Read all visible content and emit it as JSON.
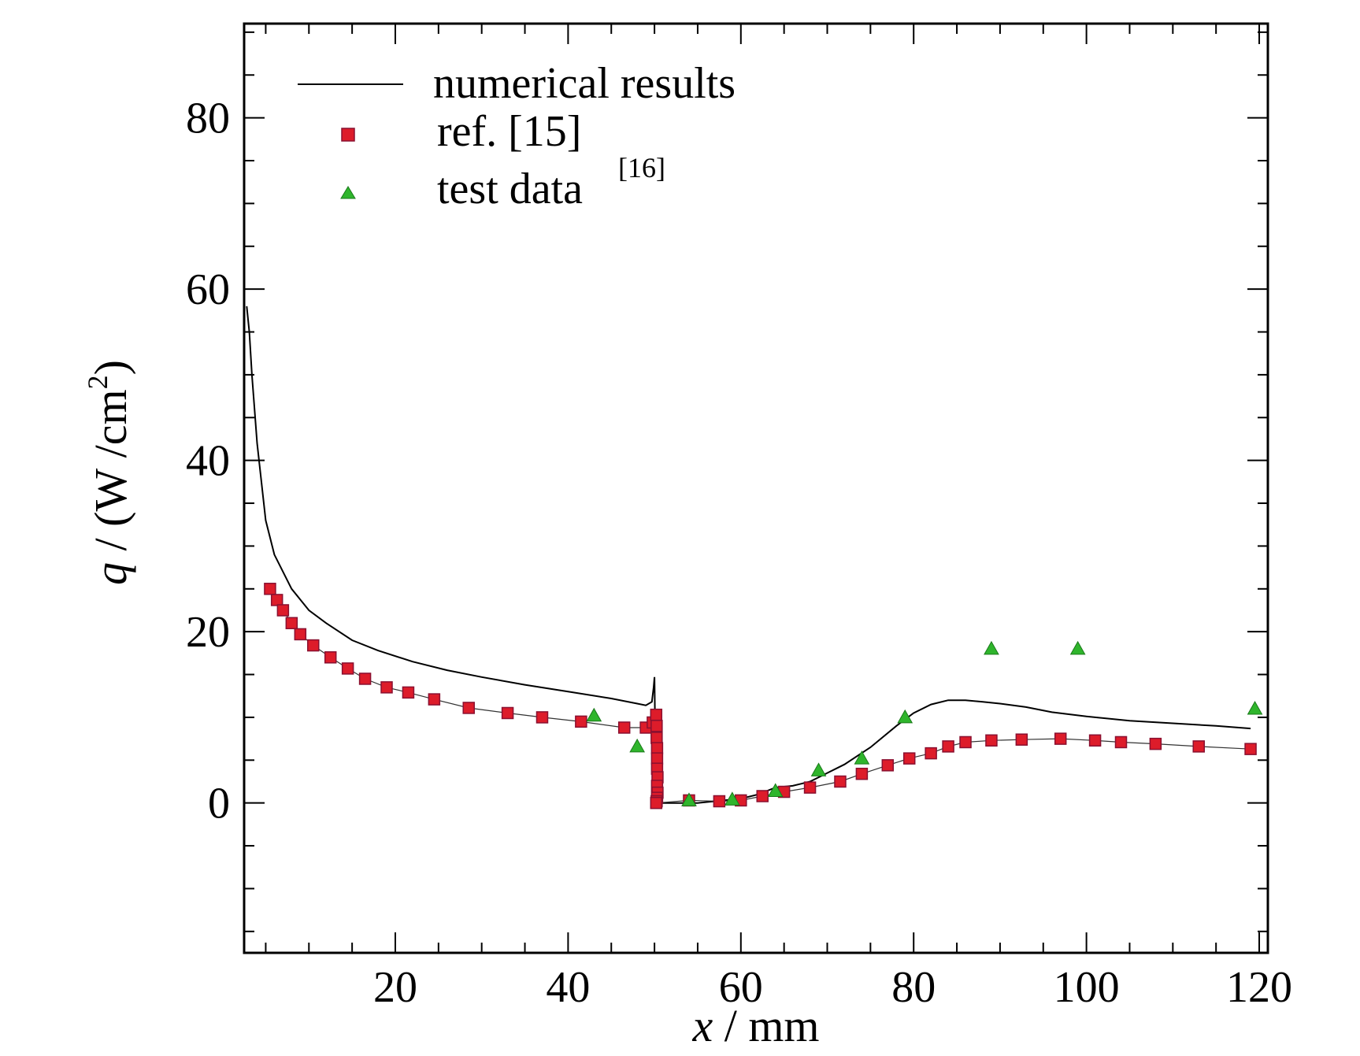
{
  "chart_data": {
    "type": "line",
    "title": "",
    "xlabel": {
      "var": "x",
      "rest": " / mm"
    },
    "ylabel": {
      "var": "q",
      "rest": " / (W /cm",
      "sup": "2",
      "close": ")"
    },
    "xlim": [
      2.5,
      121
    ],
    "ylim": [
      -17.5,
      91
    ],
    "xticks": [
      20,
      40,
      60,
      80,
      100,
      120
    ],
    "xtick_labels": [
      "20",
      "40",
      "60",
      "80",
      "100",
      "120"
    ],
    "yticks": [
      0,
      20,
      40,
      60,
      80
    ],
    "ytick_labels": [
      "0",
      "20",
      "40",
      "60",
      "80"
    ],
    "x_minor_step": 5,
    "y_minor_step": 5,
    "legend": {
      "position": "top-left",
      "entries": [
        {
          "label": "numerical results",
          "sup": ""
        },
        {
          "label": "ref. [15]",
          "sup": ""
        },
        {
          "label": "test data",
          "sup": "[16]"
        }
      ]
    },
    "colors": {
      "line": "#000000",
      "square_fill": "#dd1c2a",
      "square_stroke": "#8a1030",
      "triangle_fill": "#2fb52c",
      "triangle_stroke": "#1a7a1a"
    },
    "series": [
      {
        "name": "numerical results",
        "type": "line",
        "x": [
          2.8,
          3.1,
          3.4,
          4,
          5,
          6,
          8,
          10,
          12,
          15,
          18,
          22,
          26,
          30,
          35,
          40,
          45,
          48,
          49,
          49.7,
          49.9,
          50,
          50.05,
          50.1,
          50.2,
          50.5,
          52,
          55,
          58,
          60,
          62,
          64,
          66,
          68,
          70,
          72,
          75,
          78,
          80,
          82,
          84,
          86,
          88,
          90,
          93,
          96,
          100,
          105,
          110,
          115,
          119
        ],
        "y": [
          58,
          55,
          50,
          42,
          33,
          29,
          25,
          22.5,
          21,
          19,
          17.8,
          16.5,
          15.5,
          14.7,
          13.8,
          13,
          12.2,
          11.6,
          11.4,
          11.8,
          13.5,
          14.7,
          11,
          5,
          0.3,
          0,
          0,
          0,
          0.3,
          0.5,
          1,
          1.8,
          2,
          2.5,
          3.5,
          4.5,
          6.5,
          9,
          10.5,
          11.5,
          12,
          12,
          11.8,
          11.6,
          11.2,
          10.6,
          10.1,
          9.6,
          9.3,
          9,
          8.7
        ]
      },
      {
        "name": "ref. [15]",
        "type": "scatter",
        "marker": "square",
        "x": [
          5.5,
          6.3,
          7.0,
          8.0,
          9.0,
          10.5,
          12.5,
          14.5,
          16.5,
          19,
          21.5,
          24.5,
          28.5,
          33,
          37,
          41.5,
          46.5,
          49,
          49.8,
          50.2,
          50.25,
          50.25,
          50.3,
          50.3,
          50.3,
          50.35,
          50.3,
          50.35,
          50.3,
          50.25,
          50.2,
          54,
          57.5,
          60,
          62.5,
          65,
          68,
          71.5,
          74,
          77,
          79.5,
          82,
          84,
          86,
          89,
          92.5,
          97,
          101,
          104,
          108,
          113,
          119
        ],
        "y": [
          25,
          23.7,
          22.5,
          21,
          19.7,
          18.4,
          17,
          15.7,
          14.5,
          13.5,
          12.9,
          12.1,
          11.1,
          10.5,
          10,
          9.5,
          8.8,
          8.8,
          9.4,
          10.3,
          9,
          7.6,
          6.4,
          5.2,
          4,
          3,
          2,
          1.2,
          0.6,
          0.2,
          0,
          0.3,
          0.2,
          0.3,
          0.8,
          1.3,
          1.8,
          2.5,
          3.4,
          4.4,
          5.2,
          5.8,
          6.6,
          7.1,
          7.3,
          7.4,
          7.5,
          7.3,
          7.1,
          6.9,
          6.6,
          6.3
        ]
      },
      {
        "name": "test data",
        "type": "scatter",
        "marker": "triangle",
        "x": [
          43,
          48,
          54,
          59,
          64,
          69,
          74,
          79,
          89,
          99,
          119.5
        ],
        "y": [
          10.2,
          6.6,
          0.3,
          0.4,
          1.4,
          3.8,
          5.2,
          10,
          18,
          18,
          11
        ]
      }
    ]
  }
}
